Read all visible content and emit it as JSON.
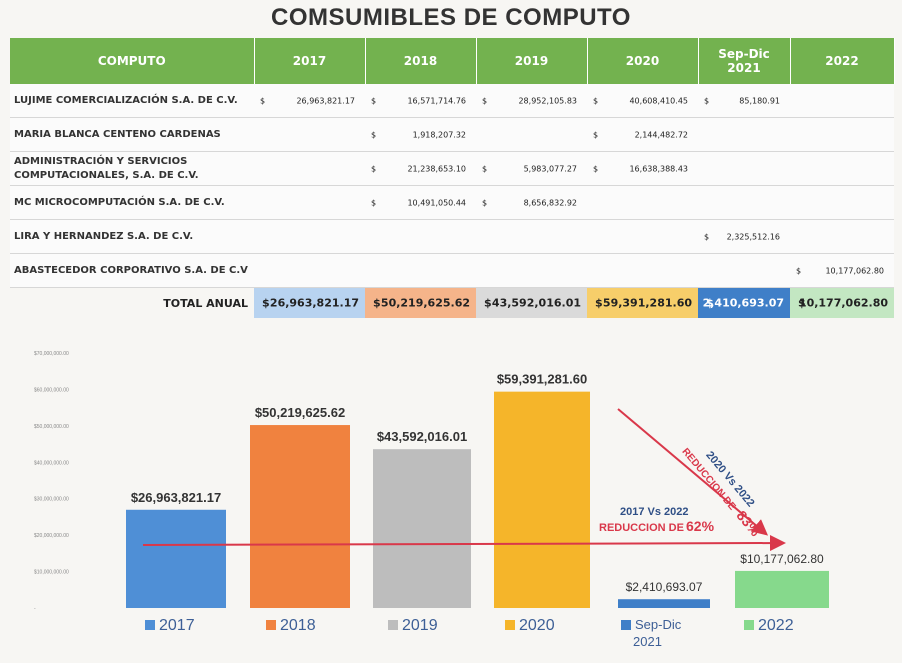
{
  "title": "COMSUMIBLES DE COMPUTO",
  "table": {
    "columns": [
      "COMPUTO",
      "2017",
      "2018",
      "2019",
      "2020",
      "Sep-Dic\n2021",
      "2022"
    ],
    "currency_symbol": "$",
    "rows": [
      {
        "name": "LUJIME COMERCIALIZACIÓN S.A. DE C.V.",
        "values": [
          "26,963,821.17",
          "16,571,714.76",
          "28,952,105.83",
          "40,608,410.45",
          "85,180.91",
          ""
        ]
      },
      {
        "name": "MARIA BLANCA CENTENO CARDENAS",
        "values": [
          "",
          "1,918,207.32",
          "",
          "2,144,482.72",
          "",
          ""
        ]
      },
      {
        "name": "ADMINISTRACIÓN Y SERVICIOS COMPUTACIONALES, S.A. DE C.V.",
        "values": [
          "",
          "21,238,653.10",
          "5,983,077.27",
          "16,638,388.43",
          "",
          ""
        ]
      },
      {
        "name": "MC MICROCOMPUTACIÓN S.A. DE C.V.",
        "values": [
          "",
          "10,491,050.44",
          "8,656,832.92",
          "",
          "",
          ""
        ]
      },
      {
        "name": "LIRA Y HERNANDEZ S.A. DE C.V.",
        "values": [
          "",
          "",
          "",
          "",
          "2,325,512.16",
          ""
        ]
      },
      {
        "name": "ABASTECEDOR CORPORATIVO S.A. DE C.V",
        "values": [
          "",
          "",
          "",
          "",
          "",
          "10,177,062.80"
        ]
      }
    ],
    "total_label": "TOTAL ANUAL",
    "totals": [
      "26,963,821.17",
      "50,219,625.62",
      "43,592,016.01",
      "59,391,281.60",
      "2,410,693.07",
      "10,177,062.80"
    ]
  },
  "colors": {
    "header": "#73b24f",
    "series": [
      "#4f8fd6",
      "#f0823f",
      "#bdbdbd",
      "#f5b52a",
      "#3f7fc8",
      "#86d98c"
    ],
    "totals_bg": [
      "#b8d3f0",
      "#f5b48a",
      "#dadada",
      "#f7ce6a",
      "#3f7fc8",
      "#c3e7c2"
    ],
    "trend": "#d9384a"
  },
  "chart_data": {
    "type": "bar",
    "categories": [
      "2017",
      "2018",
      "2019",
      "2020",
      "Sep-Dic 2021",
      "2022"
    ],
    "values": [
      26963821.17,
      50219625.62,
      43592016.01,
      59391281.6,
      2410693.07,
      10177062.8
    ],
    "data_labels": [
      "$26,963,821.17",
      "$50,219,625.62",
      "$43,592,016.01",
      "$59,391,281.60",
      "$2,410,693.07",
      "$10,177,062.80"
    ],
    "legend": [
      "2017",
      "2018",
      "2019",
      "2020",
      "Sep-Dic 2021",
      "2022"
    ],
    "legend_placement": "bottom",
    "ylim": [
      0,
      70000000
    ],
    "yticks": [
      "-",
      "$10,000,000.00",
      "$20,000,000.00",
      "$30,000,000.00",
      "$40,000,000.00",
      "$50,000,000.00",
      "$60,000,000.00",
      "$70,000,000.00"
    ],
    "annotations": [
      {
        "text": "2020 Vs 2022",
        "line2": "REDUCCION DE",
        "pct": "83%"
      },
      {
        "text": "2017 Vs 2022",
        "line2": "REDUCCION DE",
        "pct": "62%"
      }
    ]
  }
}
